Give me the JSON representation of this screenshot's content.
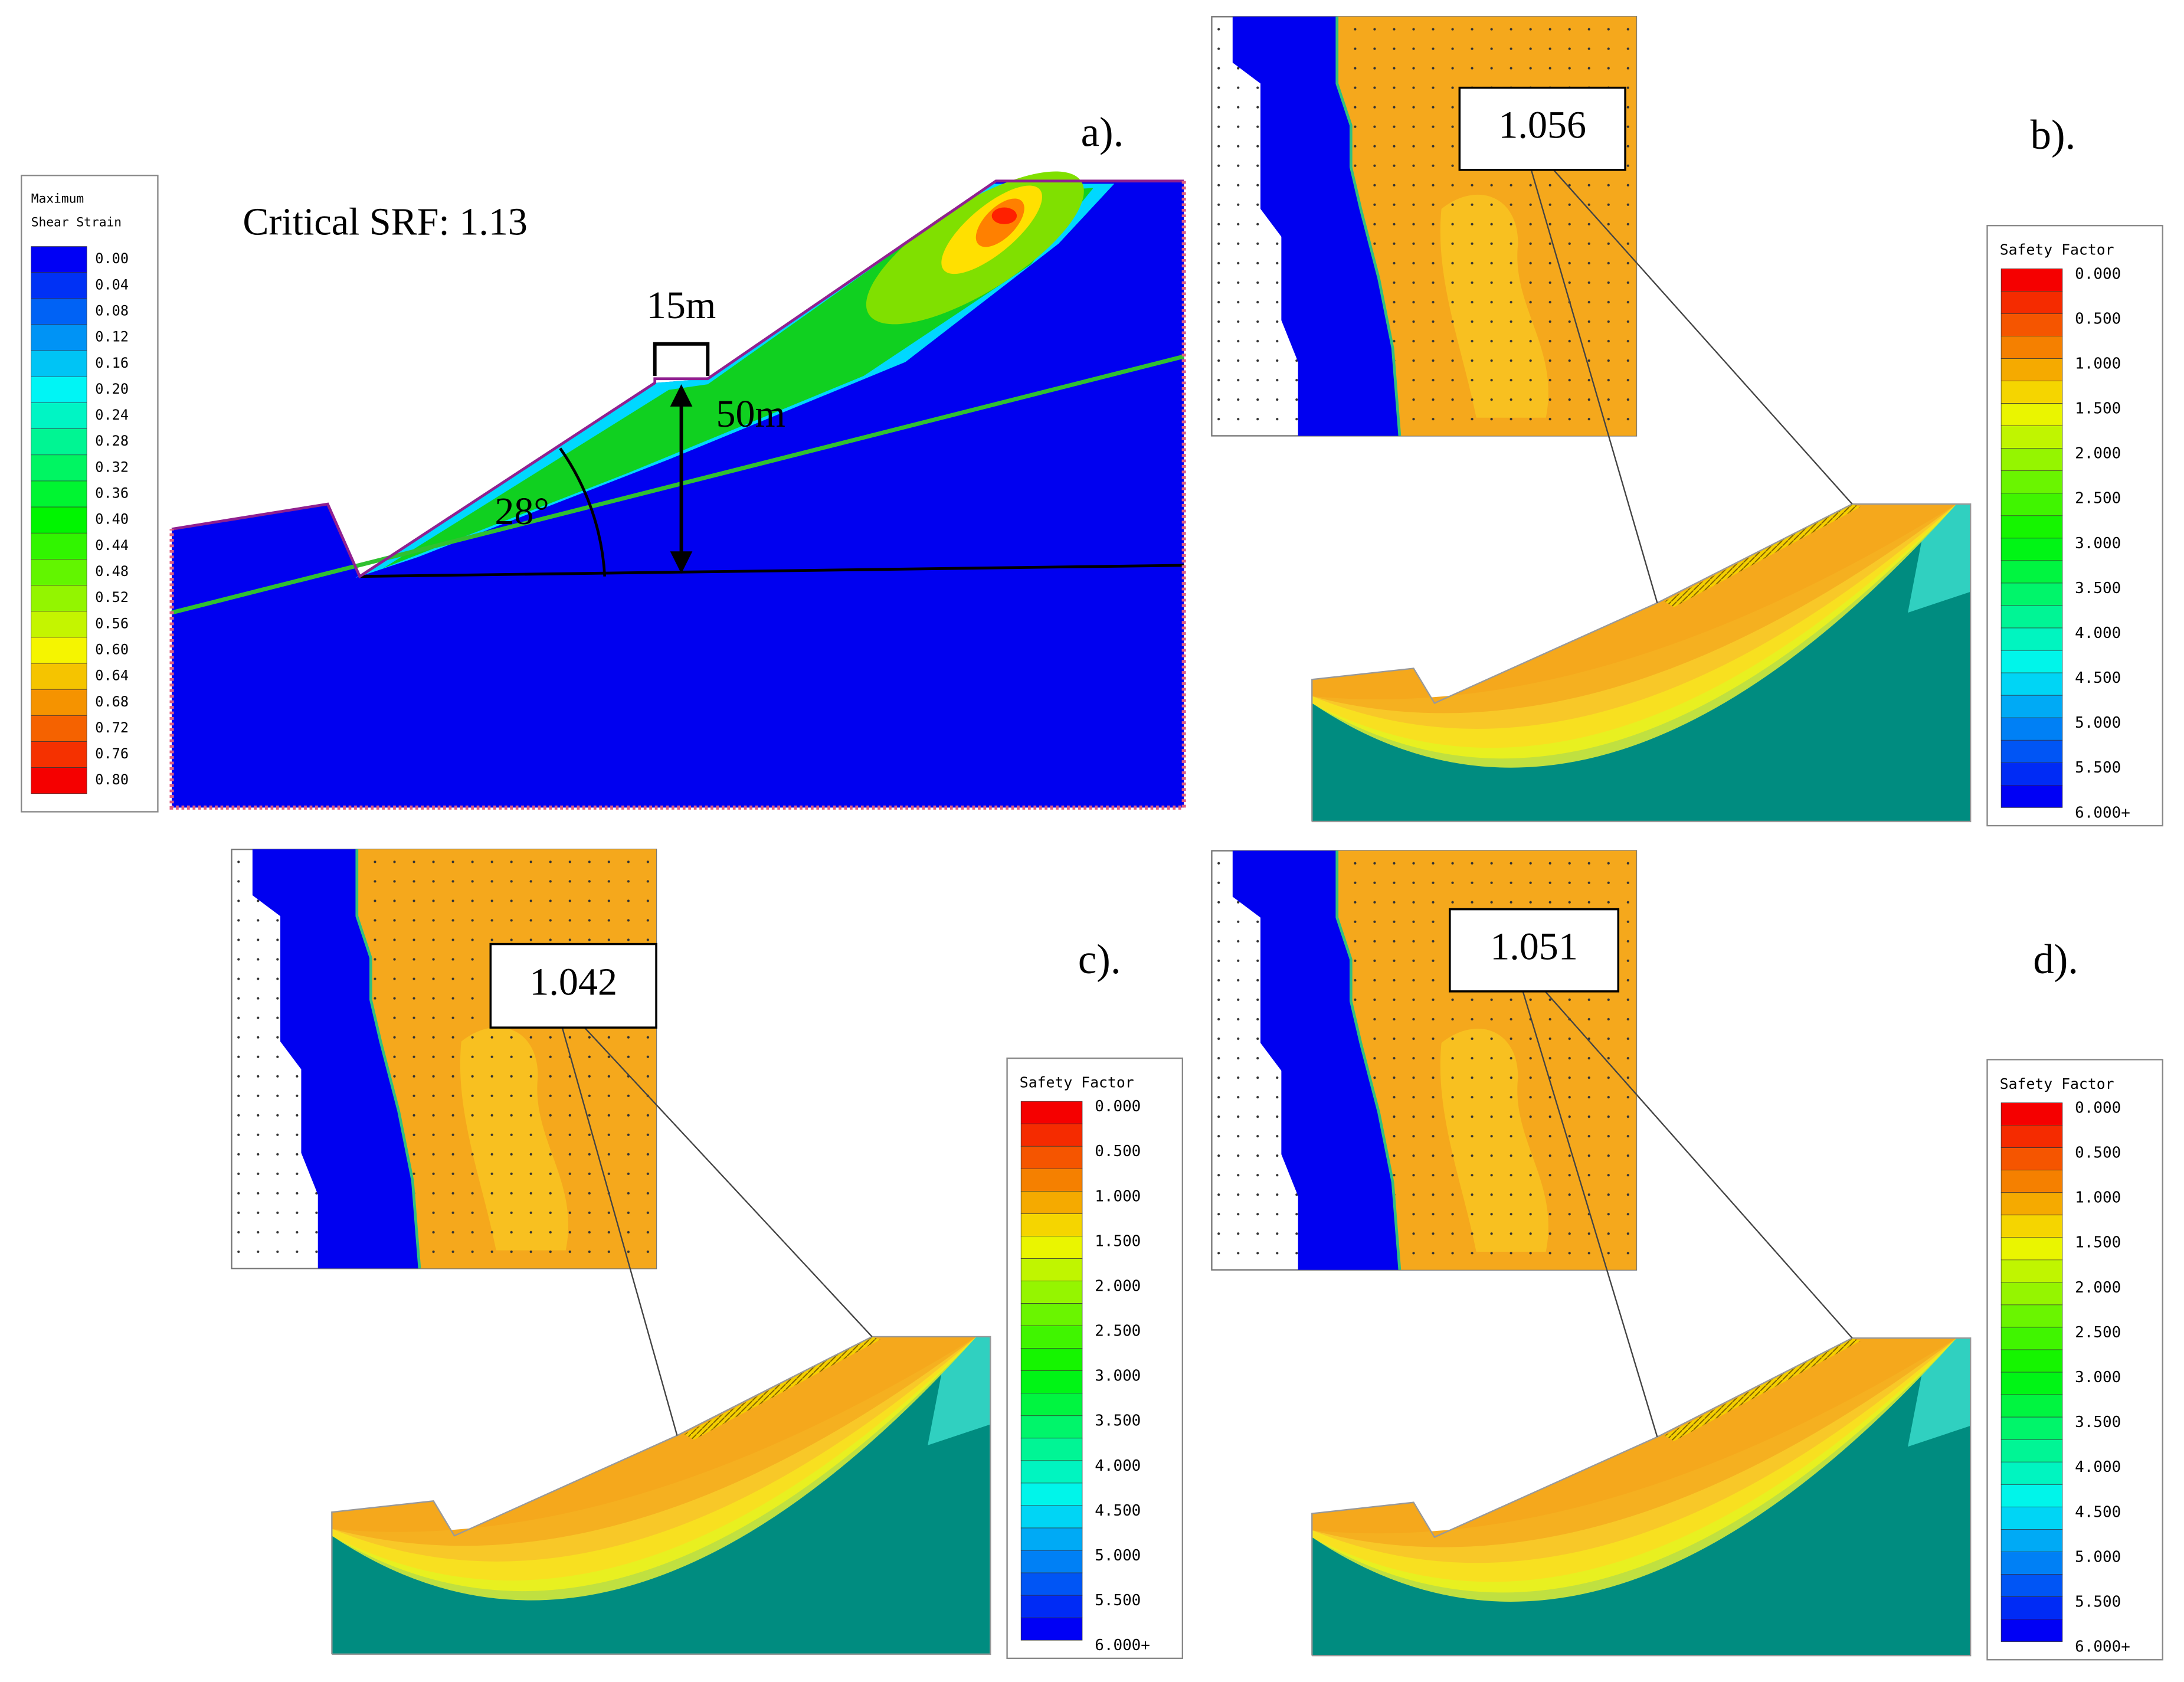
{
  "panel_a": {
    "label": "a).",
    "annotation": "Critical SRF: 1.13",
    "bench_width": "15m",
    "height": "50m",
    "angle": "28°",
    "legend_title": [
      "Maximum",
      "Shear Strain"
    ],
    "legend_labels": [
      "0.00",
      "0.04",
      "0.08",
      "0.12",
      "0.16",
      "0.20",
      "0.24",
      "0.28",
      "0.32",
      "0.36",
      "0.40",
      "0.44",
      "0.48",
      "0.52",
      "0.56",
      "0.60",
      "0.64",
      "0.68",
      "0.72",
      "0.76",
      "0.80"
    ]
  },
  "panel_b": {
    "label": "b).",
    "factor": "1.056",
    "legend_title": "Safety Factor",
    "legend_labels": [
      "0.000",
      "0.500",
      "1.000",
      "1.500",
      "2.000",
      "2.500",
      "3.000",
      "3.500",
      "4.000",
      "4.500",
      "5.000",
      "5.500",
      "6.000+"
    ]
  },
  "panel_c": {
    "label": "c).",
    "factor": "1.042",
    "legend_title": "Safety Factor",
    "legend_labels": [
      "0.000",
      "0.500",
      "1.000",
      "1.500",
      "2.000",
      "2.500",
      "3.000",
      "3.500",
      "4.000",
      "4.500",
      "5.000",
      "5.500",
      "6.000+"
    ]
  },
  "panel_d": {
    "label": "d).",
    "factor": "1.051",
    "legend_title": "Safety Factor",
    "legend_labels": [
      "0.000",
      "0.500",
      "1.000",
      "1.500",
      "2.000",
      "2.500",
      "3.000",
      "3.500",
      "4.000",
      "4.500",
      "5.000",
      "5.500",
      "6.000+"
    ]
  }
}
